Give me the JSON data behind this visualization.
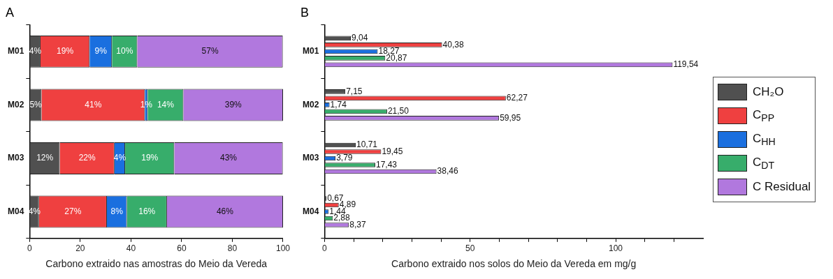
{
  "chart_data": [
    {
      "type": "bar",
      "title": "A",
      "orientation": "horizontal",
      "stacked": true,
      "xlabel": "Carbono extraido nas amostras do Meio da Vereda",
      "categories": [
        "M01",
        "M02",
        "M03",
        "M04"
      ],
      "xlim": [
        0,
        100
      ],
      "xticks": [
        0,
        20,
        40,
        60,
        80,
        100
      ],
      "legend": false,
      "series": [
        {
          "color": "#505050",
          "values": [
            4.3,
            4.7,
            11.9,
            3.7
          ],
          "value_labels": [
            "4%",
            "5%",
            "12%",
            "4%"
          ]
        },
        {
          "color": "#ef4040",
          "values": [
            19.4,
            40.8,
            21.6,
            26.8
          ],
          "value_labels": [
            "19%",
            "41%",
            "22%",
            "27%"
          ]
        },
        {
          "color": "#1a6fdf",
          "values": [
            8.8,
            1.1,
            4.2,
            7.9
          ],
          "value_labels": [
            "9%",
            "1%",
            "4%",
            "8%"
          ]
        },
        {
          "color": "#37ad6b",
          "values": [
            10.0,
            14.1,
            19.4,
            15.8
          ],
          "value_labels": [
            "10%",
            "14%",
            "19%",
            "16%"
          ]
        },
        {
          "color": "#b178de",
          "values": [
            57.4,
            39.3,
            42.8,
            45.8
          ],
          "value_labels": [
            "57%",
            "39%",
            "43%",
            "46%"
          ]
        }
      ]
    },
    {
      "type": "bar",
      "title": "B",
      "orientation": "horizontal",
      "xlabel": "Carbono extraido nos solos do Meio da Vereda em mg/g",
      "categories": [
        "M01",
        "M02",
        "M03",
        "M04"
      ],
      "xlim": [
        0,
        130
      ],
      "xticks": [
        0,
        {
          "value": 10,
          "label": null
        },
        {
          "value": 20,
          "label": null
        },
        {
          "value": 30,
          "label": null
        },
        {
          "value": 40,
          "label": null
        },
        50,
        {
          "value": 60,
          "label": null
        },
        {
          "value": 70,
          "label": null
        },
        {
          "value": 80,
          "label": null
        },
        {
          "value": 90,
          "label": null
        },
        100,
        {
          "value": 110,
          "label": null
        },
        {
          "value": 120,
          "label": null
        }
      ],
      "legend": "right",
      "series": [
        {
          "name": "CH₂O",
          "color": "#505050",
          "values": [
            9.04,
            7.15,
            10.71,
            0.67
          ],
          "value_labels": [
            "9,04",
            "7,15",
            "10,71",
            "0,67"
          ]
        },
        {
          "name": "C$_{PP}$",
          "color": "#ef4040",
          "values": [
            40.38,
            62.27,
            19.45,
            4.89
          ],
          "value_labels": [
            "40,38",
            "62,27",
            "19,45",
            "4,89"
          ]
        },
        {
          "name": "C$_{HH}$",
          "color": "#1a6fdf",
          "values": [
            18.27,
            1.74,
            3.79,
            1.44
          ],
          "value_labels": [
            "18,27",
            "1,74",
            "3,79",
            "1,44"
          ]
        },
        {
          "name": "C$_{DT}$",
          "color": "#37ad6b",
          "values": [
            20.87,
            21.5,
            17.43,
            2.88
          ],
          "value_labels": [
            "20,87",
            "21,50",
            "17,43",
            "2,88"
          ]
        },
        {
          "name": "C Residual",
          "color": "#b178de",
          "values": [
            119.54,
            59.95,
            38.46,
            8.37
          ],
          "value_labels": [
            "119,54",
            "59,95",
            "38,46",
            "8,37"
          ]
        }
      ]
    }
  ]
}
